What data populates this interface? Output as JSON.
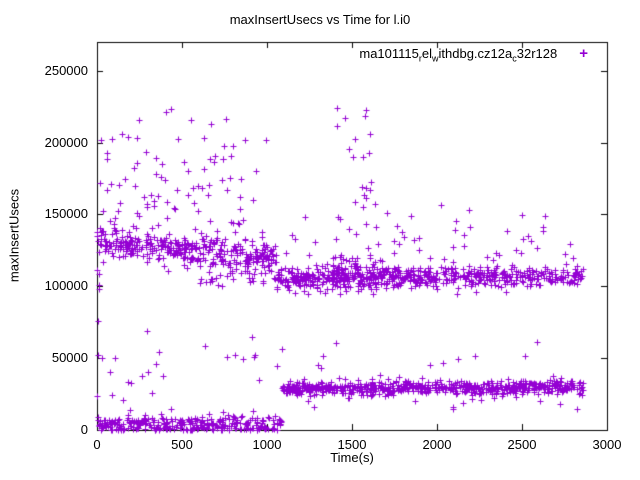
{
  "chart_data": {
    "type": "scatter",
    "title": "maxInsertUsecs vs Time for l.i0",
    "xlabel": "Time(s)",
    "ylabel": "maxInsertUsecs",
    "xlim": [
      0,
      3000
    ],
    "ylim": [
      0,
      270000
    ],
    "xticks": [
      0,
      500,
      1000,
      1500,
      2000,
      2500,
      3000
    ],
    "yticks": [
      0,
      50000,
      100000,
      150000,
      200000,
      250000
    ],
    "grid": false,
    "legend_position": "top-right-inside",
    "marker": "plus",
    "marker_color": "#9400d3",
    "axis_color": "#000000",
    "series_label": "ma101115_rel_withdbg.cz12a_c32r128",
    "legend_segments": [
      {
        "t": "ma101115",
        "sub": false
      },
      {
        "t": "r",
        "sub": true
      },
      {
        "t": "el",
        "sub": false
      },
      {
        "t": "w",
        "sub": true
      },
      {
        "t": "ithdbg.cz12a",
        "sub": false
      },
      {
        "t": "c",
        "sub": true
      },
      {
        "t": "32r128",
        "sub": false
      }
    ],
    "seed": 1337,
    "clusters": [
      {
        "name": "upper-band-early",
        "count": 360,
        "x": [
          5,
          1055
        ],
        "y": {
          "dist": "normal",
          "mean": [
            130000,
            120500
          ],
          "sd": 5500
        }
      },
      {
        "name": "upper-band-late",
        "count": 640,
        "x": [
          1055,
          2860
        ],
        "y": {
          "dist": "normal",
          "mean": [
            105500,
            107500
          ],
          "sd": 3800
        }
      },
      {
        "name": "upper-band-bump",
        "count": 55,
        "x": [
          1380,
          1680
        ],
        "y": {
          "dist": "normal",
          "mean": [
            117000,
            112000
          ],
          "sd": 8000
        }
      },
      {
        "name": "lower-band-early",
        "count": 310,
        "x": [
          5,
          1085
        ],
        "y": {
          "dist": "normal",
          "mean": [
            4000,
            3500
          ],
          "sd": 3200
        }
      },
      {
        "name": "lower-band-late",
        "count": 640,
        "x": [
          1085,
          2860
        ],
        "y": {
          "dist": "normal",
          "mean": [
            29000,
            30200
          ],
          "sd": 2500
        }
      },
      {
        "name": "mid-high-early",
        "count": 85,
        "x": [
          15,
          1050
        ],
        "y": {
          "dist": "uniform",
          "range": [
            138000,
            205000
          ]
        }
      },
      {
        "name": "high-outliers-early",
        "count": 7,
        "x": [
          60,
          1000
        ],
        "y": {
          "dist": "uniform",
          "range": [
            205000,
            226000
          ]
        }
      },
      {
        "name": "spike-cluster-1450",
        "count": 24,
        "x": [
          1390,
          1640
        ],
        "y": {
          "dist": "uniform",
          "range": [
            135000,
            226000
          ]
        }
      },
      {
        "name": "mid-scatter-late",
        "count": 50,
        "x": [
          1100,
          2860
        ],
        "y": {
          "dist": "uniform",
          "range": [
            114000,
            158000
          ]
        }
      },
      {
        "name": "low-mid-early",
        "count": 26,
        "x": [
          20,
          1100
        ],
        "y": {
          "dist": "uniform",
          "range": [
            13000,
            70000
          ]
        }
      },
      {
        "name": "left-edge-strip",
        "count": 12,
        "x": [
          0,
          14
        ],
        "y": {
          "dist": "uniform",
          "range": [
            5000,
            160000
          ]
        }
      },
      {
        "name": "between-bands-late",
        "count": 14,
        "x": [
          1100,
          2860
        ],
        "y": {
          "dist": "uniform",
          "range": [
            14000,
            24000
          ]
        }
      },
      {
        "name": "upper-stragglers-late",
        "count": 10,
        "x": [
          1200,
          2860
        ],
        "y": {
          "dist": "uniform",
          "range": [
            40000,
            65000
          ]
        }
      },
      {
        "name": "below-upper-band-early",
        "count": 40,
        "x": [
          600,
          1050
        ],
        "y": {
          "dist": "uniform",
          "range": [
            100000,
            118000
          ]
        }
      }
    ]
  }
}
